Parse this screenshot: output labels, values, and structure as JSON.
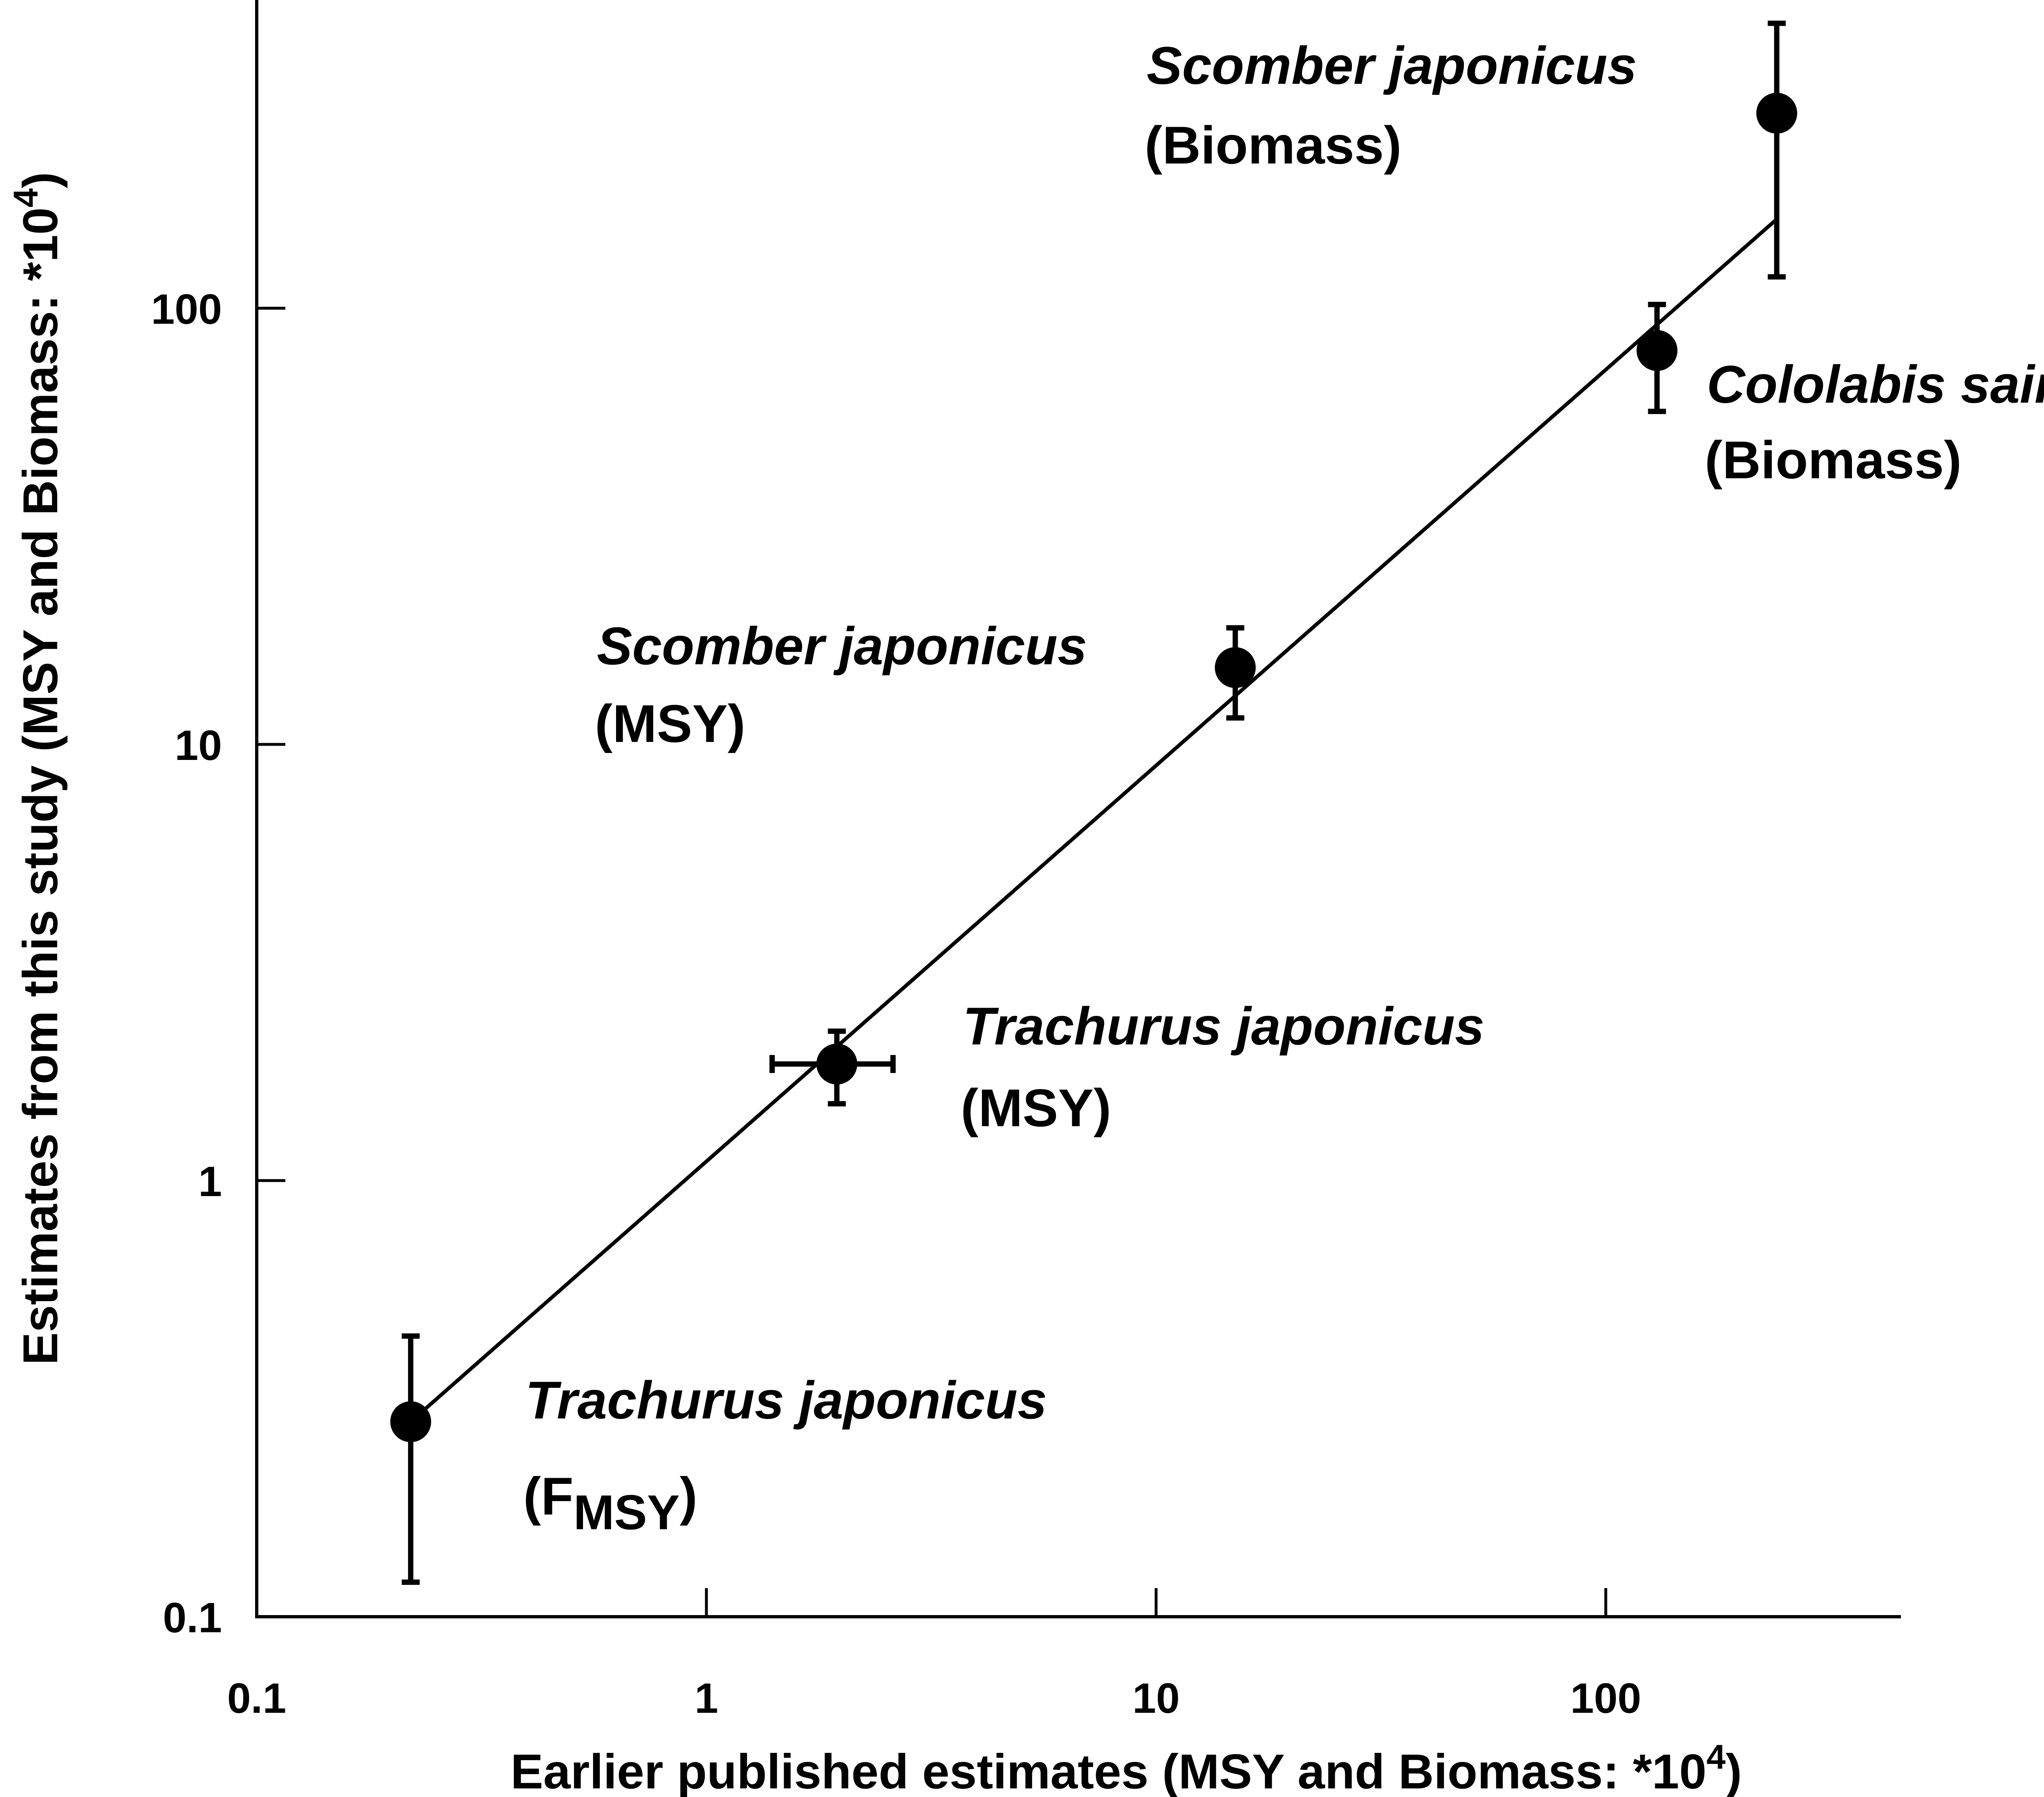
{
  "chart_data": {
    "type": "scatter",
    "title": "",
    "xlabel": {
      "text": "Earlier published estimates (MSY and Biomass: *10",
      "superscript": "4",
      "suffix": ")"
    },
    "ylabel": {
      "text": "Estimates from this study (MSY and Biomass: *10",
      "superscript": "4",
      "suffix": ")"
    },
    "x_scale": "log",
    "y_scale": "log",
    "xlim": [
      0.1,
      600
    ],
    "ylim": [
      0.1,
      600
    ],
    "x_ticks": [
      0.1,
      1,
      10,
      100
    ],
    "y_ticks": [
      0.1,
      1,
      10,
      100
    ],
    "x_tick_labels": [
      "0.1",
      "1",
      "10",
      "100"
    ],
    "y_tick_labels": [
      "0.1",
      "1",
      "10",
      "100"
    ],
    "grid": false,
    "legend": "none",
    "points": [
      {
        "x": 0.22,
        "y": 0.28,
        "y_err": [
          0.12,
          0.44
        ],
        "x_err": null
      },
      {
        "x": 1.95,
        "y": 1.85,
        "y_err": [
          1.5,
          2.2
        ],
        "x_err": [
          1.4,
          2.6
        ]
      },
      {
        "x": 15,
        "y": 15,
        "y_err": [
          11.5,
          18.5
        ],
        "x_err": null
      },
      {
        "x": 130,
        "y": 80,
        "y_err": [
          58,
          102
        ],
        "x_err": null
      },
      {
        "x": 240,
        "y": 280,
        "y_err": [
          118,
          450
        ],
        "x_err": null
      }
    ],
    "fit_line": {
      "x": [
        0.22,
        240
      ],
      "y": [
        0.28,
        160
      ]
    },
    "annotations": [
      {
        "species": "Trachurus japonicus",
        "type_prefix": "(F",
        "type_sub": "MSY",
        "type_suffix": ")"
      },
      {
        "species": "Trachurus japonicus",
        "type": "(MSY)"
      },
      {
        "species": "Scomber japonicus",
        "type": "(MSY)"
      },
      {
        "species": "Cololabis saira",
        "type": "(Biomass)"
      },
      {
        "species": "Scomber japonicus",
        "type": "(Biomass)"
      }
    ]
  }
}
